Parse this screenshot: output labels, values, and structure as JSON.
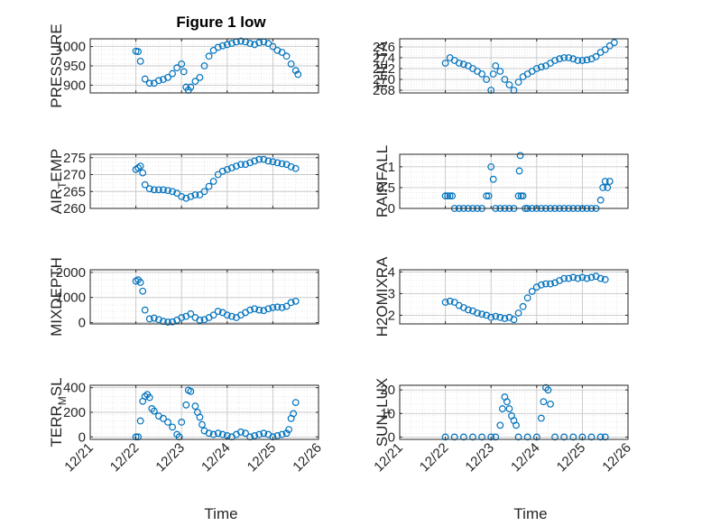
{
  "figure": {
    "title": "Figure 1 low"
  },
  "chart_data": [
    {
      "type": "scatter",
      "ylabel": "PRESSURE",
      "ylabel_sub": "",
      "ylabel_tail": "",
      "xlim": [
        21,
        26
      ],
      "ylim": [
        880,
        1020
      ],
      "yticks": [
        900,
        950,
        1000
      ],
      "color": "#0072bd",
      "grid": "on",
      "xticks_shown": false,
      "x": [
        22.0,
        22.05,
        22.1,
        22.2,
        22.3,
        22.4,
        22.5,
        22.6,
        22.7,
        22.8,
        22.9,
        23.0,
        23.05,
        23.1,
        23.15,
        23.2,
        23.3,
        23.4,
        23.5,
        23.6,
        23.7,
        23.8,
        23.9,
        24.0,
        24.1,
        24.2,
        24.3,
        24.4,
        24.5,
        24.6,
        24.7,
        24.8,
        24.9,
        25.0,
        25.1,
        25.2,
        25.3,
        25.4,
        25.5,
        25.55
      ],
      "y": [
        988,
        987,
        962,
        916,
        905,
        905,
        912,
        915,
        920,
        930,
        945,
        955,
        935,
        895,
        887,
        895,
        910,
        920,
        950,
        975,
        990,
        998,
        1002,
        1005,
        1008,
        1012,
        1014,
        1012,
        1008,
        1005,
        1010,
        1012,
        1008,
        1000,
        990,
        985,
        975,
        955,
        938,
        928
      ]
    },
    {
      "type": "scatter",
      "ylabel": "THETA",
      "ylabel_sub": "",
      "ylabel_tail": "",
      "xlim": [
        21,
        26
      ],
      "ylim": [
        267.5,
        277.5
      ],
      "yticks": [
        268,
        270,
        272,
        274,
        276
      ],
      "color": "#0072bd",
      "grid": "on",
      "xticks_shown": false,
      "x": [
        22.0,
        22.1,
        22.2,
        22.3,
        22.4,
        22.5,
        22.6,
        22.7,
        22.8,
        22.9,
        23.0,
        23.05,
        23.1,
        23.2,
        23.3,
        23.4,
        23.5,
        23.6,
        23.7,
        23.8,
        23.9,
        24.0,
        24.1,
        24.2,
        24.3,
        24.4,
        24.5,
        24.6,
        24.7,
        24.8,
        24.9,
        25.0,
        25.1,
        25.2,
        25.3,
        25.4,
        25.5,
        25.6,
        25.7
      ],
      "y": [
        273,
        274,
        273.5,
        273,
        272.8,
        272.5,
        272,
        271.5,
        271,
        270,
        268,
        271,
        272.5,
        271.5,
        270,
        269,
        268,
        269.5,
        270.5,
        271,
        271.5,
        272,
        272.3,
        272.5,
        273,
        273.5,
        273.8,
        274,
        274,
        273.8,
        273.5,
        273.5,
        273.6,
        273.8,
        274.2,
        275,
        275.5,
        276.2,
        276.8
      ]
    },
    {
      "type": "scatter",
      "ylabel": "AIR",
      "ylabel_sub": "T",
      "ylabel_tail": "EMP",
      "xlim": [
        21,
        26
      ],
      "ylim": [
        260,
        276
      ],
      "yticks": [
        260,
        265,
        270,
        275
      ],
      "color": "#0072bd",
      "grid": "on",
      "xticks_shown": false,
      "x": [
        22.0,
        22.05,
        22.1,
        22.15,
        22.2,
        22.3,
        22.4,
        22.5,
        22.6,
        22.7,
        22.8,
        22.9,
        23.0,
        23.1,
        23.2,
        23.3,
        23.4,
        23.5,
        23.6,
        23.7,
        23.8,
        23.9,
        24.0,
        24.1,
        24.2,
        24.3,
        24.4,
        24.5,
        24.6,
        24.7,
        24.8,
        24.9,
        25.0,
        25.1,
        25.2,
        25.3,
        25.4,
        25.5
      ],
      "y": [
        271.5,
        272,
        272.5,
        270.5,
        267,
        265.8,
        265.5,
        265.5,
        265.5,
        265.3,
        265,
        264.5,
        263.5,
        263,
        263.5,
        264,
        264,
        265,
        266.5,
        268,
        270,
        271,
        271.5,
        272,
        272.5,
        273,
        273,
        273.5,
        274,
        274.5,
        274.5,
        274,
        273.8,
        273.5,
        273.2,
        273,
        272.3,
        271.8
      ]
    },
    {
      "type": "scatter",
      "ylabel": "RAINFALL",
      "ylabel_sub": "",
      "ylabel_tail": "",
      "xlim": [
        21,
        26
      ],
      "ylim": [
        0,
        1.3
      ],
      "yticks": [
        0,
        0.5,
        1
      ],
      "color": "#0072bd",
      "grid": "on",
      "xticks_shown": false,
      "x": [
        22.0,
        22.05,
        22.1,
        22.15,
        22.2,
        22.3,
        22.4,
        22.5,
        22.6,
        22.7,
        22.8,
        22.9,
        22.95,
        23.0,
        23.05,
        23.1,
        23.2,
        23.3,
        23.4,
        23.5,
        23.6,
        23.62,
        23.64,
        23.66,
        23.7,
        23.75,
        23.8,
        23.9,
        24.0,
        24.1,
        24.2,
        24.3,
        24.4,
        24.5,
        24.6,
        24.7,
        24.8,
        24.9,
        25.0,
        25.1,
        25.2,
        25.3,
        25.4,
        25.45,
        25.5,
        25.55,
        25.6
      ],
      "y": [
        0.3,
        0.3,
        0.3,
        0.3,
        0,
        0,
        0,
        0,
        0,
        0,
        0,
        0.3,
        0.3,
        1.0,
        0.7,
        0,
        0,
        0,
        0,
        0,
        0.3,
        0.9,
        1.27,
        0.3,
        0.3,
        0,
        0,
        0,
        0,
        0,
        0,
        0,
        0,
        0,
        0,
        0,
        0,
        0,
        0,
        0,
        0,
        0,
        0.2,
        0.5,
        0.65,
        0.5,
        0.65
      ]
    },
    {
      "type": "scatter",
      "ylabel": "MIXDEPTH",
      "ylabel_sub": "",
      "ylabel_tail": "",
      "xlim": [
        21,
        26
      ],
      "ylim": [
        -50,
        2100
      ],
      "yticks": [
        0,
        1000,
        2000
      ],
      "color": "#0072bd",
      "grid": "on",
      "xticks_shown": false,
      "x": [
        22.0,
        22.05,
        22.1,
        22.15,
        22.2,
        22.3,
        22.4,
        22.5,
        22.6,
        22.7,
        22.8,
        22.9,
        23.0,
        23.1,
        23.2,
        23.3,
        23.4,
        23.5,
        23.6,
        23.7,
        23.8,
        23.9,
        24.0,
        24.1,
        24.2,
        24.3,
        24.4,
        24.5,
        24.6,
        24.7,
        24.8,
        24.9,
        25.0,
        25.1,
        25.2,
        25.3,
        25.4,
        25.5
      ],
      "y": [
        1650,
        1700,
        1600,
        1250,
        500,
        150,
        180,
        120,
        50,
        20,
        30,
        100,
        200,
        250,
        350,
        200,
        100,
        120,
        200,
        300,
        450,
        400,
        300,
        250,
        200,
        300,
        400,
        500,
        550,
        500,
        480,
        550,
        600,
        620,
        600,
        650,
        800,
        850
      ]
    },
    {
      "type": "scatter",
      "ylabel": "H2OMIXRA",
      "ylabel_sub": "",
      "ylabel_tail": "",
      "xlim": [
        21,
        26
      ],
      "ylim": [
        1.6,
        4.1
      ],
      "yticks": [
        2,
        3,
        4
      ],
      "color": "#0072bd",
      "grid": "on",
      "xticks_shown": false,
      "x": [
        22.0,
        22.1,
        22.2,
        22.3,
        22.4,
        22.5,
        22.6,
        22.7,
        22.8,
        22.9,
        23.0,
        23.1,
        23.2,
        23.3,
        23.4,
        23.5,
        23.6,
        23.7,
        23.8,
        23.9,
        24.0,
        24.1,
        24.2,
        24.3,
        24.4,
        24.5,
        24.6,
        24.7,
        24.8,
        24.9,
        25.0,
        25.1,
        25.2,
        25.3,
        25.4,
        25.5
      ],
      "y": [
        2.6,
        2.65,
        2.6,
        2.45,
        2.35,
        2.25,
        2.2,
        2.1,
        2.05,
        2.0,
        1.9,
        1.95,
        1.9,
        1.85,
        1.9,
        1.8,
        2.1,
        2.4,
        2.8,
        3.1,
        3.3,
        3.4,
        3.45,
        3.45,
        3.5,
        3.6,
        3.7,
        3.7,
        3.75,
        3.7,
        3.75,
        3.7,
        3.75,
        3.8,
        3.7,
        3.65
      ]
    },
    {
      "type": "scatter",
      "ylabel": "TERR",
      "ylabel_sub": "M",
      "ylabel_tail": "SL",
      "xlim": [
        21,
        26
      ],
      "ylim": [
        -20,
        420
      ],
      "yticks": [
        0,
        200,
        400
      ],
      "color": "#0072bd",
      "grid": "on",
      "xticks_shown": true,
      "x": [
        22.0,
        22.05,
        22.1,
        22.15,
        22.2,
        22.25,
        22.3,
        22.35,
        22.4,
        22.5,
        22.6,
        22.7,
        22.8,
        22.9,
        22.95,
        23.0,
        23.1,
        23.15,
        23.2,
        23.3,
        23.35,
        23.4,
        23.45,
        23.5,
        23.6,
        23.7,
        23.8,
        23.9,
        24.0,
        24.1,
        24.2,
        24.3,
        24.4,
        24.5,
        24.6,
        24.7,
        24.8,
        24.9,
        25.0,
        25.1,
        25.2,
        25.3,
        25.35,
        25.4,
        25.45,
        25.5
      ],
      "y": [
        0,
        0,
        130,
        290,
        330,
        345,
        320,
        230,
        210,
        170,
        150,
        120,
        80,
        20,
        0,
        120,
        260,
        380,
        370,
        250,
        200,
        160,
        100,
        50,
        30,
        20,
        30,
        20,
        10,
        0,
        20,
        40,
        30,
        0,
        10,
        20,
        30,
        20,
        0,
        10,
        20,
        30,
        60,
        150,
        190,
        280
      ]
    },
    {
      "type": "scatter",
      "ylabel": "SUN",
      "ylabel_sub": "F",
      "ylabel_tail": "LUX",
      "xlim": [
        21,
        26
      ],
      "ylim": [
        -1,
        22
      ],
      "yticks": [
        0,
        10,
        20
      ],
      "color": "#0072bd",
      "grid": "on",
      "xticks_shown": true,
      "x": [
        22.0,
        22.2,
        22.4,
        22.6,
        22.8,
        23.0,
        23.1,
        23.2,
        23.25,
        23.3,
        23.35,
        23.4,
        23.45,
        23.5,
        23.55,
        23.6,
        23.8,
        24.0,
        24.1,
        24.15,
        24.2,
        24.25,
        24.3,
        24.4,
        24.6,
        24.8,
        25.0,
        25.2,
        25.4,
        25.5
      ],
      "y": [
        0,
        0,
        0,
        0,
        0,
        0,
        0,
        5,
        12,
        17,
        15,
        12,
        9,
        7,
        5,
        0,
        0,
        0,
        8,
        15,
        21,
        20,
        14,
        0,
        0,
        0,
        0,
        0,
        0,
        0
      ]
    }
  ],
  "x_tick_labels": [
    "12/21",
    "12/22",
    "12/23",
    "12/24",
    "12/25",
    "12/26"
  ],
  "x_tick_values": [
    21,
    22,
    23,
    24,
    25,
    26
  ],
  "xlabel_left": "Time",
  "xlabel_right": "Time"
}
